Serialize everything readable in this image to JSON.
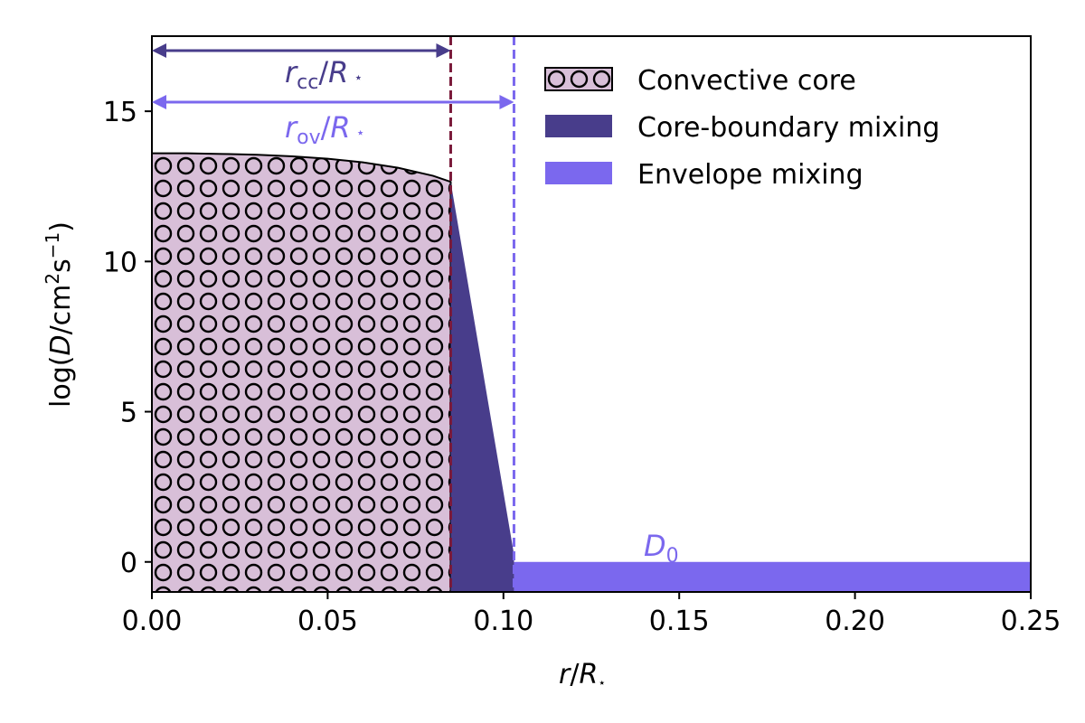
{
  "chart_data": {
    "type": "area",
    "xlabel": {
      "var": "r",
      "sep": "/",
      "R": "R",
      "star": "⋆"
    },
    "ylabel": {
      "pre": "log(",
      "D": "D",
      "mid": "/cm",
      "sup2": "2",
      "s": "s",
      "supm1": "−1",
      "post": ")"
    },
    "xlim": [
      0.0,
      0.25
    ],
    "ylim": [
      -1.0,
      17.5
    ],
    "xticks": [
      0.0,
      0.05,
      0.1,
      0.15,
      0.2,
      0.25
    ],
    "xtick_labels": [
      "0.00",
      "0.05",
      "0.10",
      "0.15",
      "0.20",
      "0.25"
    ],
    "yticks": [
      0,
      5,
      10,
      15
    ],
    "ytick_labels": [
      "0",
      "5",
      "10",
      "15"
    ],
    "r_cc": 0.085,
    "r_ov": 0.103,
    "D0": 0.0,
    "convective_core": {
      "x": [
        0.0,
        0.01,
        0.02,
        0.03,
        0.04,
        0.05,
        0.06,
        0.07,
        0.08,
        0.085
      ],
      "y": [
        13.6,
        13.6,
        13.58,
        13.55,
        13.5,
        13.42,
        13.3,
        13.12,
        12.85,
        12.65
      ]
    },
    "core_boundary_mixing": {
      "x": [
        0.085,
        0.103
      ],
      "y": [
        12.65,
        0.25
      ]
    },
    "envelope_mixing": {
      "x": [
        0.103,
        0.25
      ],
      "y": 0.0
    },
    "legend": {
      "position": "top-right",
      "entries": [
        {
          "label": "Convective core",
          "style": "hatch"
        },
        {
          "label": "Core-boundary mixing",
          "style": "dark"
        },
        {
          "label": "Envelope mixing",
          "style": "light"
        }
      ]
    },
    "annotations": {
      "rcc": {
        "r": "r",
        "sub": "cc",
        "slash": "/",
        "R": "R",
        "star": "⋆"
      },
      "rov": {
        "r": "r",
        "sub": "ov",
        "slash": "/",
        "R": "R",
        "star": "⋆"
      },
      "d0": {
        "D": "D",
        "sub": "0"
      }
    },
    "colors": {
      "core_fill": "#d8bfd8",
      "core_hatch": "#000000",
      "cbm": "#483d8b",
      "envelope": "#7b68ee",
      "rcc_line": "#7a1a3a",
      "arrow_rcc": "#483d8b",
      "arrow_rov": "#7b68ee"
    }
  }
}
